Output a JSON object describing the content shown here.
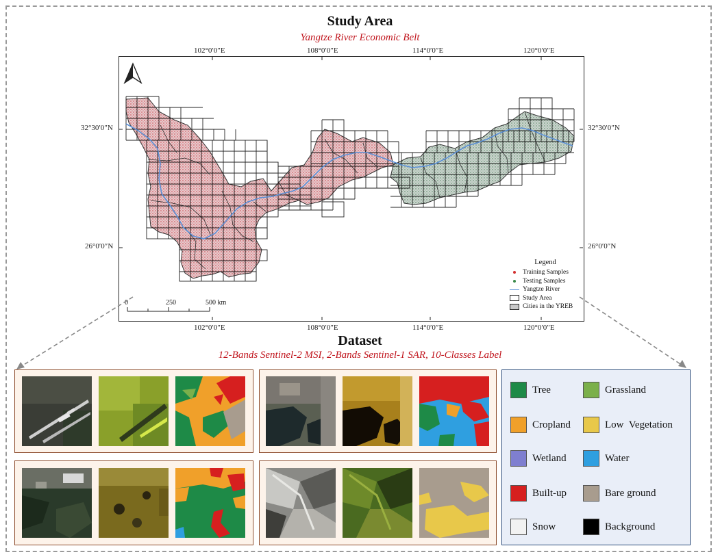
{
  "header": {
    "title": "Study Area",
    "subtitle": "Yangtze River Economic Belt"
  },
  "map": {
    "top_ticks": [
      "102°0′0″E",
      "108°0′0″E",
      "114°0′0″E",
      "120°0′0″E"
    ],
    "bottom_ticks": [
      "102°0′0″E",
      "108°0′0″E",
      "114°0′0″E",
      "120°0′0″E"
    ],
    "left_ticks": [
      "32°30′0″N",
      "26°0′0″N"
    ],
    "right_ticks": [
      "32°30′0″N",
      "26°0′0″N"
    ],
    "scale_labels": [
      "0",
      "250",
      "500 km"
    ],
    "north_arrow": "north-arrow-icon",
    "legend": {
      "title": "Legend",
      "items": [
        {
          "label": "Training Samples",
          "symbol": "dot",
          "color": "#d32f2f"
        },
        {
          "label": "Testing Samples",
          "symbol": "dot",
          "color": "#3a8a4a"
        },
        {
          "label": "Yangtze River",
          "symbol": "line",
          "color": "#5a8fd6"
        },
        {
          "label": "Study Area",
          "symbol": "rect",
          "color": "#ffffff"
        },
        {
          "label": "Cities in the YREB",
          "symbol": "rect",
          "color": "#c8c8c8"
        }
      ]
    },
    "colors": {
      "west_region": "#e8c4c8",
      "east_region": "#c6d2cc",
      "river": "#5a8fd6"
    }
  },
  "dataset": {
    "title": "Dataset",
    "subtitle": "12-Bands Sentinel-2 MSI, 2-Bands Sentinel-1 SAR, 10-Classes Label"
  },
  "classes": [
    {
      "label": "Tree",
      "color": "#1e8a47"
    },
    {
      "label": "Grassland",
      "color": "#7bb04b"
    },
    {
      "label": "Cropland",
      "color": "#f0a02a"
    },
    {
      "label": "Low  Vegetation",
      "color": "#e8c84a"
    },
    {
      "label": "Wetland",
      "color": "#7f7fd0"
    },
    {
      "label": "Water",
      "color": "#2f9fe0"
    },
    {
      "label": "Built-up",
      "color": "#d61f1f"
    },
    {
      "label": "Bare ground",
      "color": "#a89c8e"
    },
    {
      "label": "Snow",
      "color": "#f2f2f2"
    },
    {
      "label": "Background",
      "color": "#000000"
    }
  ]
}
